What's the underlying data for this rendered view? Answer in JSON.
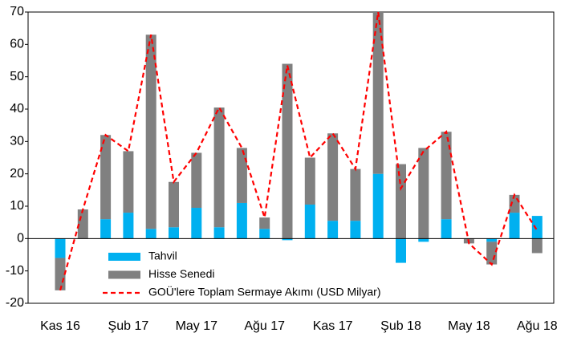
{
  "chart_data": {
    "type": "bar",
    "categories": [
      "Kas 16",
      null,
      null,
      "Şub 17",
      null,
      null,
      "May 17",
      null,
      null,
      "Ağu 17",
      null,
      null,
      "Kas 17",
      null,
      null,
      "Şub 18",
      null,
      null,
      "May 18",
      null,
      null,
      "Ağu 18"
    ],
    "series": [
      {
        "name": "Tahvil",
        "color": "#00b0f0",
        "values": [
          -6,
          0,
          6,
          8,
          3,
          3.5,
          9.5,
          3.5,
          11,
          3,
          -0.5,
          10.5,
          5.5,
          5.5,
          20,
          -7.5,
          -1,
          6,
          0,
          -1,
          8,
          7
        ]
      },
      {
        "name": "Hisse Senedi",
        "color": "#808080",
        "values": [
          -10,
          9,
          26,
          19,
          60,
          14,
          17,
          37,
          17,
          3.5,
          54,
          14.5,
          27,
          16,
          50,
          23,
          28,
          27,
          -1.5,
          -7,
          5.5,
          -4.5
        ]
      },
      {
        "name": "GOÜ'lere Toplam Sermaye Akımı (USD Milyar)",
        "color": "#ff0000",
        "type": "line",
        "values": [
          -16,
          9,
          32,
          27,
          63,
          17.5,
          26.5,
          40.5,
          28,
          6.5,
          53.5,
          25,
          32.5,
          21.5,
          70,
          15.5,
          27,
          33,
          -1.5,
          -8,
          13.5,
          2.5
        ]
      }
    ],
    "ylim": [
      -20,
      70
    ],
    "yticks": [
      -20,
      -10,
      0,
      10,
      20,
      30,
      40,
      50,
      60,
      70
    ]
  }
}
